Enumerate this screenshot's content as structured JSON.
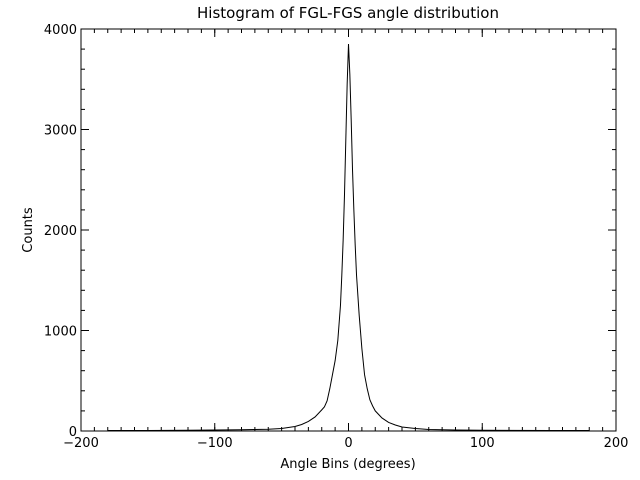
{
  "chart_data": {
    "type": "line",
    "title": "Histogram of FGL-FGS angle distribution",
    "xlabel": "Angle Bins (degrees)",
    "ylabel": "Counts",
    "xlim": [
      -200,
      200
    ],
    "ylim": [
      0,
      4000
    ],
    "grid": false,
    "xticks": [
      -200,
      -100,
      0,
      100,
      200
    ],
    "yticks": [
      0,
      1000,
      2000,
      3000,
      4000
    ],
    "xtick_labels": [
      "−200",
      "−100",
      "0",
      "100",
      "200"
    ],
    "ytick_labels": [
      "0",
      "1000",
      "2000",
      "3000",
      "4000"
    ],
    "series": [
      {
        "color": "#000000",
        "x": [
          -180,
          -150,
          -120,
          -100,
          -80,
          -60,
          -50,
          -40,
          -35,
          -30,
          -25,
          -20,
          -18,
          -16,
          -14,
          -12,
          -10,
          -8,
          -6,
          -5,
          -4,
          -3,
          -2,
          -1,
          0,
          1,
          2,
          3,
          4,
          5,
          6,
          8,
          10,
          12,
          14,
          16,
          18,
          20,
          25,
          30,
          35,
          40,
          50,
          60,
          80,
          100,
          120,
          150,
          180
        ],
        "y": [
          5,
          5,
          8,
          10,
          12,
          18,
          25,
          45,
          65,
          95,
          140,
          210,
          240,
          300,
          420,
          560,
          700,
          900,
          1250,
          1550,
          1900,
          2350,
          2900,
          3450,
          3850,
          3550,
          3100,
          2600,
          2200,
          1850,
          1550,
          1150,
          820,
          560,
          420,
          310,
          250,
          200,
          130,
          85,
          60,
          40,
          25,
          15,
          10,
          8,
          6,
          5,
          5
        ]
      }
    ]
  }
}
